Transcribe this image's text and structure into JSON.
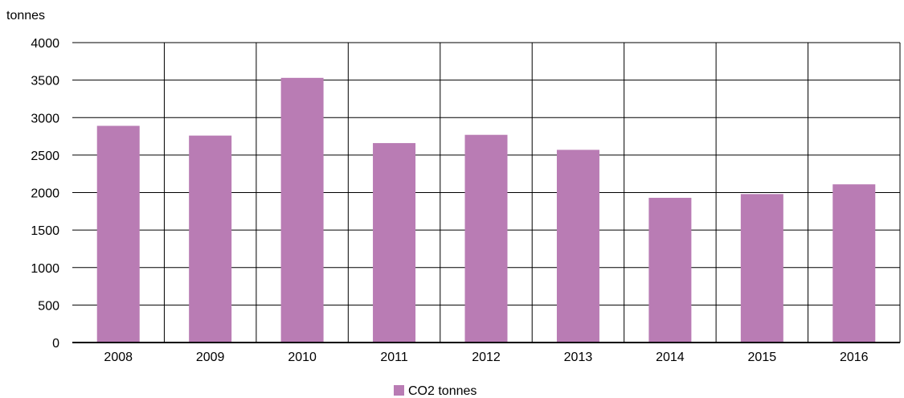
{
  "chart_data": {
    "type": "bar",
    "ylabel": "tonnes",
    "xlabel": "",
    "title": "",
    "categories": [
      "2008",
      "2009",
      "2010",
      "2011",
      "2012",
      "2013",
      "2014",
      "2015",
      "2016"
    ],
    "series": [
      {
        "name": "CO2 tonnes",
        "color": "#b97cb4",
        "values": [
          2890,
          2760,
          3530,
          2660,
          2770,
          2570,
          1930,
          1980,
          2110
        ]
      }
    ],
    "ylim": [
      0,
      4000
    ],
    "yticks": [
      "0",
      "500",
      "1000",
      "1500",
      "2000",
      "2500",
      "3000",
      "3500",
      "4000"
    ],
    "grid": true,
    "legend_position": "bottom-center"
  }
}
